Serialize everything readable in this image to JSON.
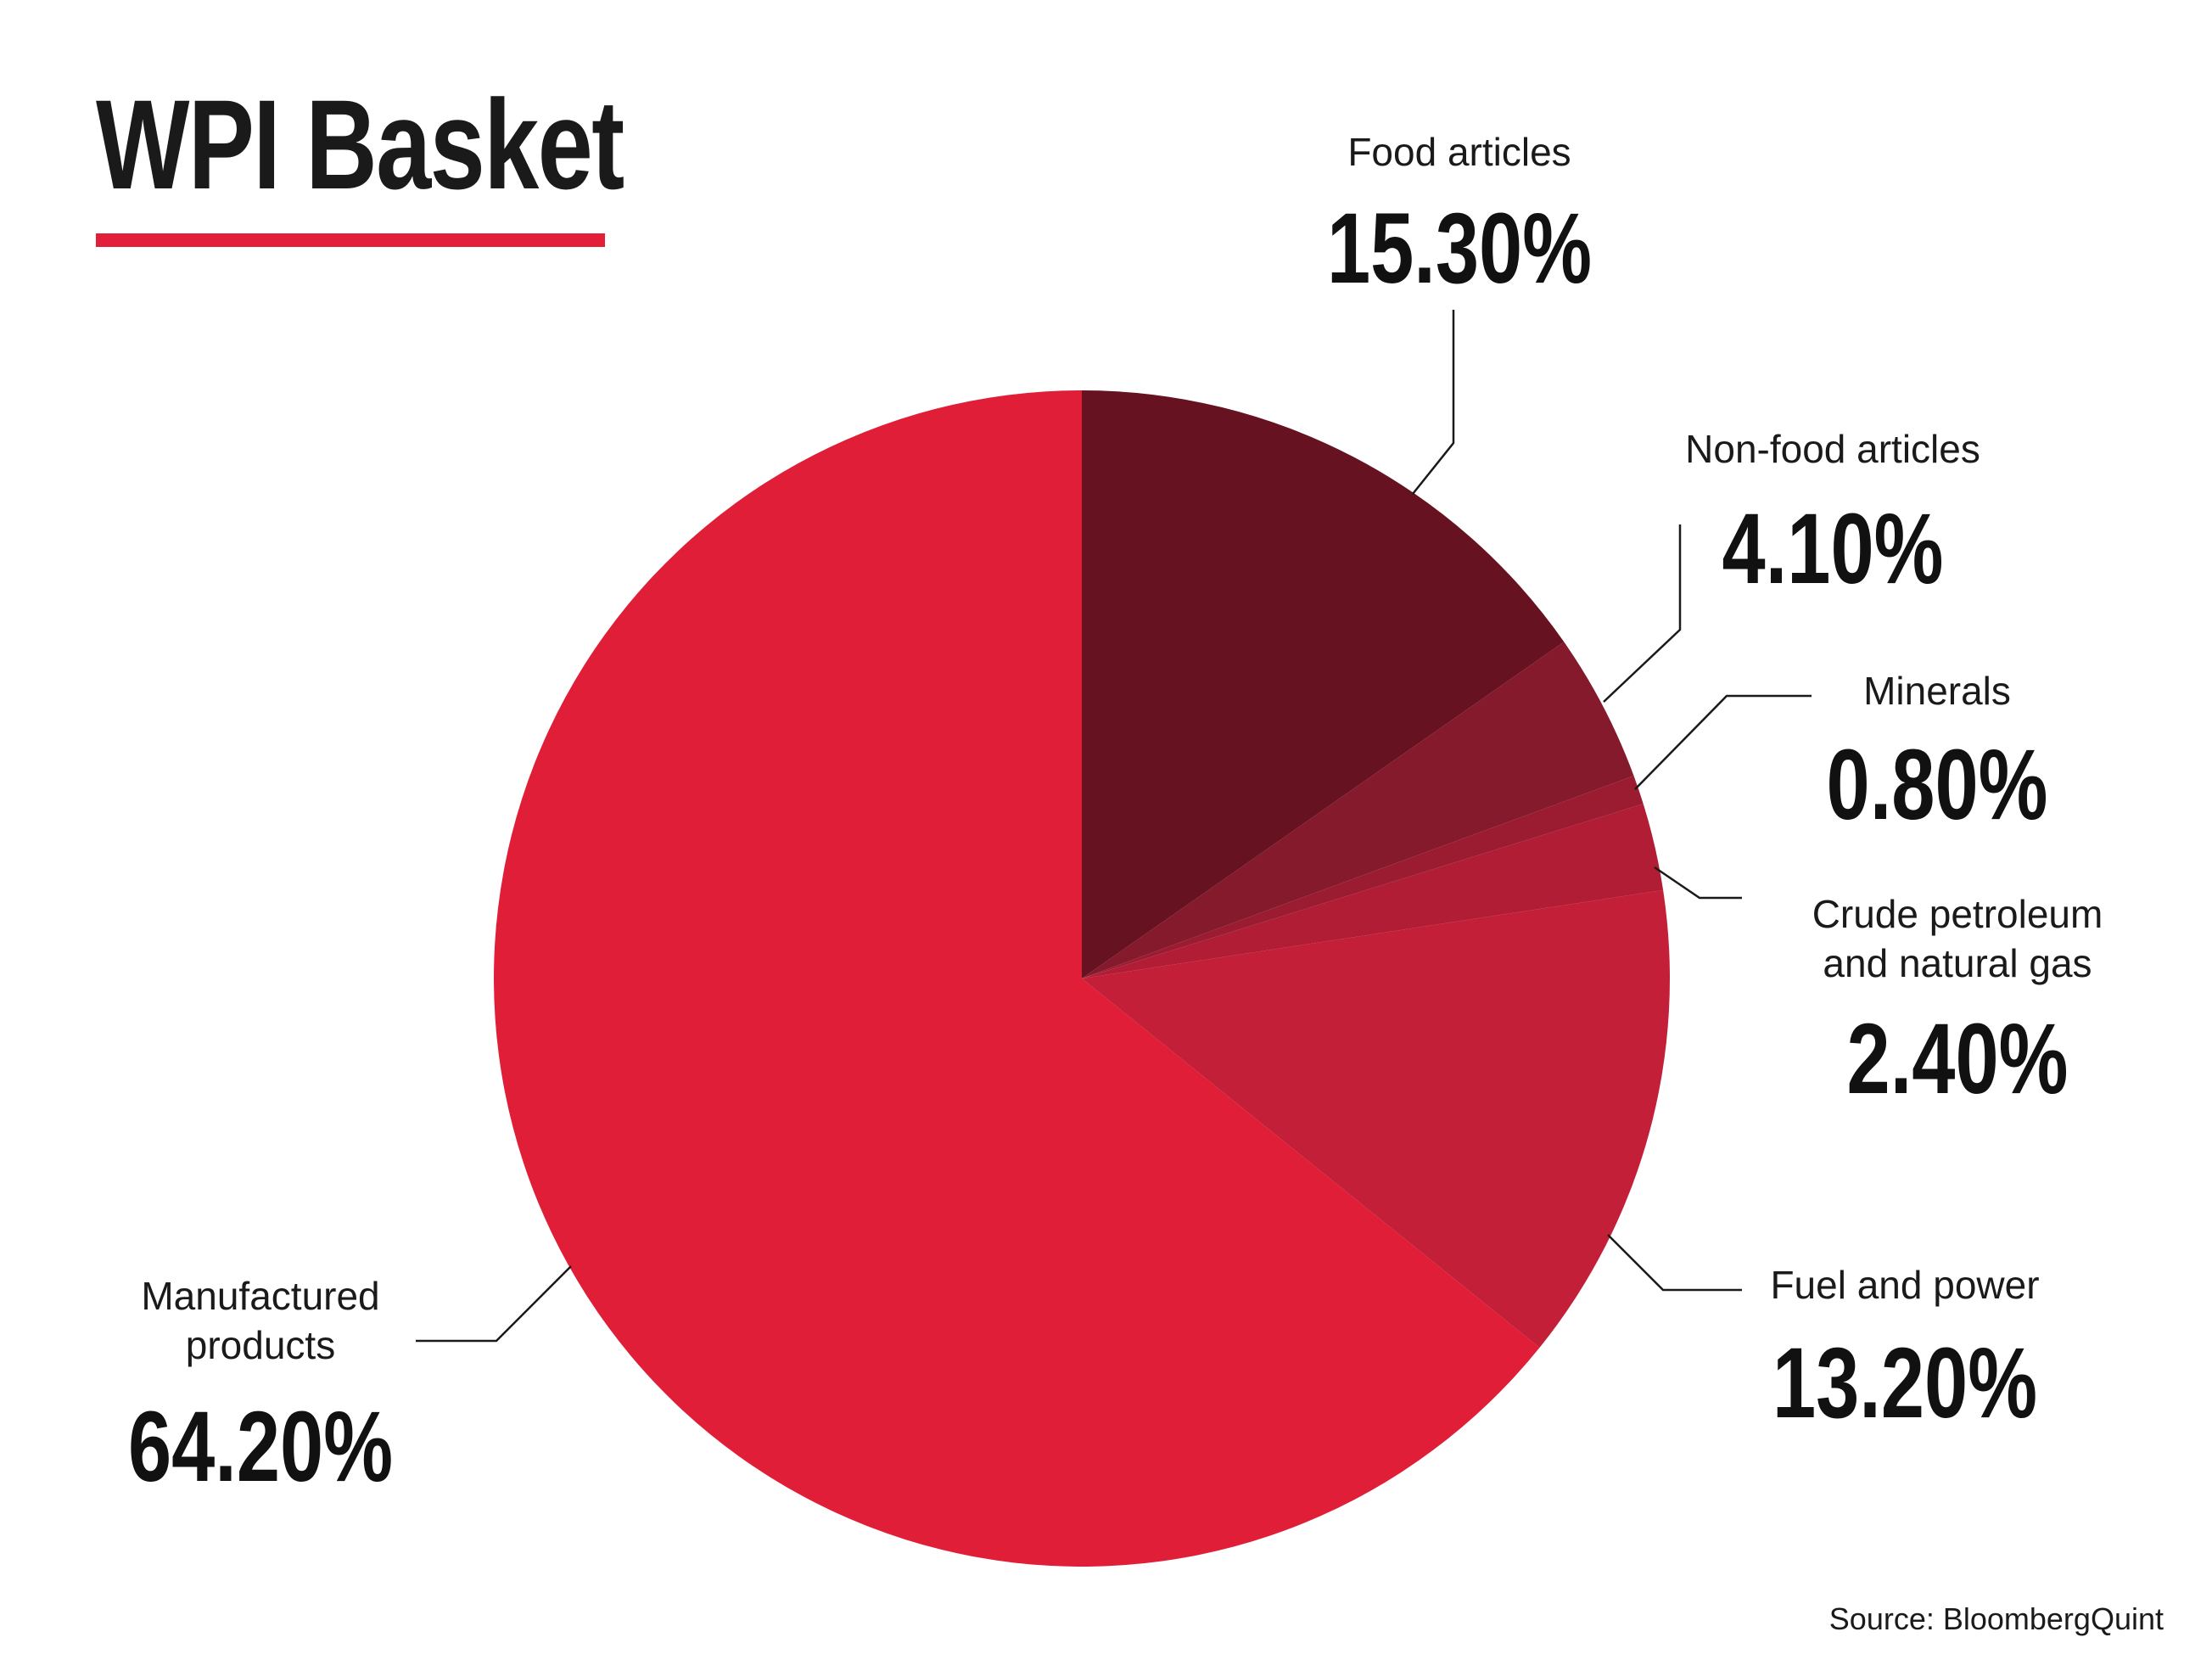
{
  "title": "WPI Basket",
  "source": "Source: BloombergQuint",
  "colors": {
    "accent": "#e31e3a",
    "food": "#661221",
    "nonfood": "#851a2c",
    "minerals": "#9b1c31",
    "crude": "#b01d34",
    "fuel": "#c41f38",
    "manufactured": "#e01e37"
  },
  "chart_data": {
    "type": "pie",
    "title": "WPI Basket",
    "start": "12 o'clock",
    "direction": "clockwise",
    "slices": [
      {
        "label_lines": [
          "Food articles"
        ],
        "value": 15.3,
        "value_label": "15.30%",
        "color": "#661221"
      },
      {
        "label_lines": [
          "Non-food articles"
        ],
        "value": 4.1,
        "value_label": "4.10%",
        "color": "#851a2c"
      },
      {
        "label_lines": [
          "Minerals"
        ],
        "value": 0.8,
        "value_label": "0.80%",
        "color": "#9b1c31"
      },
      {
        "label_lines": [
          "Crude petroleum",
          "and natural gas"
        ],
        "value": 2.4,
        "value_label": "2.40%",
        "color": "#b01d34"
      },
      {
        "label_lines": [
          "Fuel and power"
        ],
        "value": 13.2,
        "value_label": "13.20%",
        "color": "#c41f38"
      },
      {
        "label_lines": [
          "Manufactured",
          "products"
        ],
        "value": 64.2,
        "value_label": "64.20%",
        "color": "#e01e37"
      }
    ]
  }
}
